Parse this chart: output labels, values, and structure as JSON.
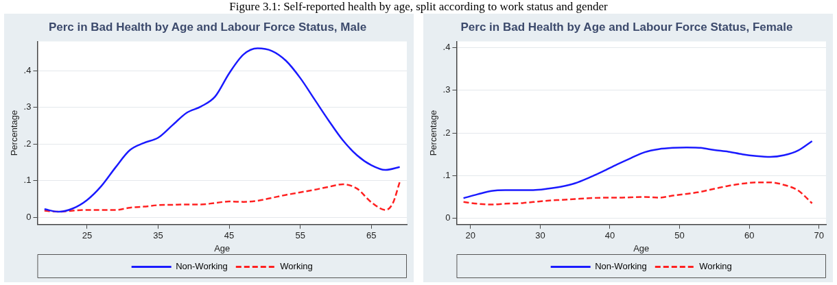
{
  "chart_data": [
    {
      "type": "line",
      "title": "Perc in Bad Health by Age and Labour Force Status, Male",
      "annotations": [
        "Figure 3.1: Self-reported health by age, split according to work status and gender"
      ],
      "xlabel": "Age",
      "ylabel": "Percentage",
      "x": [
        19,
        21,
        23,
        25,
        27,
        29,
        31,
        33,
        35,
        37,
        39,
        41,
        43,
        45,
        47,
        49,
        51,
        53,
        55,
        57,
        59,
        61,
        63,
        65,
        67,
        69
      ],
      "xlim": [
        18,
        70
      ],
      "xticks": [
        25,
        35,
        45,
        55,
        65
      ],
      "ylim": [
        -0.02,
        0.48
      ],
      "yticks": [
        {
          "value": 0,
          "label": "0"
        },
        {
          "value": 0.1,
          "label": ".1"
        },
        {
          "value": 0.2,
          "label": ".2"
        },
        {
          "value": 0.3,
          "label": ".3"
        },
        {
          "value": 0.4,
          "label": ".4"
        }
      ],
      "grid": "y",
      "legend": "bottom",
      "marker": "none",
      "series": [
        {
          "name": "Non-Working",
          "color": "#1a1aff",
          "line_style": "solid",
          "values": [
            0.022,
            0.015,
            0.024,
            0.047,
            0.085,
            0.136,
            0.183,
            0.203,
            0.217,
            0.251,
            0.285,
            0.302,
            0.329,
            0.393,
            0.444,
            0.461,
            0.454,
            0.427,
            0.38,
            0.322,
            0.264,
            0.21,
            0.169,
            0.142,
            0.129,
            0.137
          ]
        },
        {
          "name": "Working",
          "color": "#ff2020",
          "line_style": "dashed",
          "x": [
            19,
            21,
            23,
            25,
            27,
            29,
            31,
            33,
            35,
            37,
            39,
            41,
            43,
            45,
            47,
            49,
            51,
            53,
            55,
            57,
            59,
            61,
            63,
            65,
            67,
            68,
            69
          ],
          "values": [
            0.018,
            0.015,
            0.018,
            0.02,
            0.02,
            0.02,
            0.026,
            0.029,
            0.033,
            0.034,
            0.035,
            0.035,
            0.039,
            0.043,
            0.042,
            0.045,
            0.053,
            0.061,
            0.068,
            0.075,
            0.083,
            0.09,
            0.078,
            0.041,
            0.02,
            0.037,
            0.096
          ]
        }
      ]
    },
    {
      "type": "line",
      "title": "Perc in Bad Health by Age and Labour Force Status, Female",
      "xlabel": "Age",
      "ylabel": "Percentage",
      "x": [
        19,
        21,
        23,
        25,
        27,
        29,
        31,
        33,
        35,
        37,
        39,
        41,
        43,
        45,
        47,
        49,
        51,
        53,
        55,
        57,
        59,
        61,
        63,
        65,
        67,
        69
      ],
      "xlim": [
        18,
        71
      ],
      "xticks": [
        20,
        30,
        40,
        50,
        60,
        70
      ],
      "ylim": [
        -0.015,
        0.415
      ],
      "yticks": [
        {
          "value": 0,
          "label": "0"
        },
        {
          "value": 0.1,
          "label": ".1"
        },
        {
          "value": 0.2,
          "label": ".2"
        },
        {
          "value": 0.3,
          "label": ".3"
        },
        {
          "value": 0.4,
          "label": ".4"
        }
      ],
      "grid": "y",
      "legend": "bottom",
      "marker": "none",
      "series": [
        {
          "name": "Non-Working",
          "color": "#1a1aff",
          "line_style": "solid",
          "values": [
            0.047,
            0.056,
            0.064,
            0.066,
            0.066,
            0.066,
            0.069,
            0.074,
            0.082,
            0.095,
            0.11,
            0.126,
            0.141,
            0.155,
            0.162,
            0.165,
            0.166,
            0.165,
            0.16,
            0.156,
            0.15,
            0.146,
            0.144,
            0.148,
            0.159,
            0.181
          ]
        },
        {
          "name": "Working",
          "color": "#ff2020",
          "line_style": "dashed",
          "values": [
            0.038,
            0.034,
            0.032,
            0.034,
            0.035,
            0.038,
            0.041,
            0.043,
            0.045,
            0.047,
            0.048,
            0.048,
            0.049,
            0.05,
            0.048,
            0.053,
            0.057,
            0.062,
            0.069,
            0.076,
            0.081,
            0.084,
            0.084,
            0.078,
            0.065,
            0.035
          ]
        }
      ]
    }
  ]
}
